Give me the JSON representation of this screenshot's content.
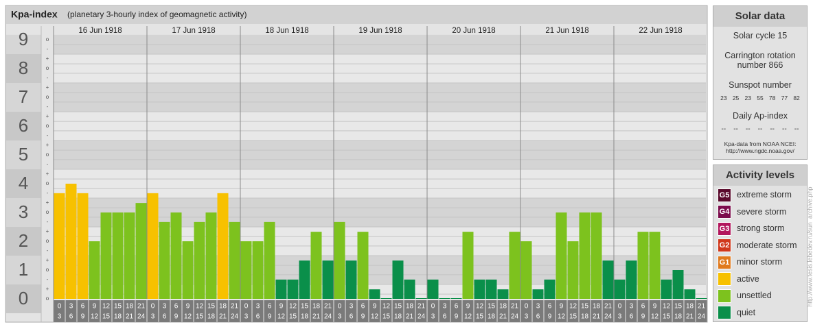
{
  "chart_data": {
    "type": "bar",
    "title": "Kpa-index",
    "subtitle": "(planetary 3-hourly index of geomagnetic activity)",
    "ylim": [
      0,
      9.17
    ],
    "yticks": [
      0,
      1,
      2,
      3,
      4,
      5,
      6,
      7,
      8,
      9
    ],
    "minor_ticks": [
      {
        "value": 0,
        "label": "o"
      },
      {
        "value": 0.33,
        "label": "+"
      },
      {
        "value": 0.67,
        "label": "-"
      },
      {
        "value": 1,
        "label": "o"
      },
      {
        "value": 1.33,
        "label": "+"
      },
      {
        "value": 1.67,
        "label": "-"
      },
      {
        "value": 2,
        "label": "o"
      },
      {
        "value": 2.33,
        "label": "+"
      },
      {
        "value": 2.67,
        "label": "-"
      },
      {
        "value": 3,
        "label": "o"
      },
      {
        "value": 3.33,
        "label": "+"
      },
      {
        "value": 3.67,
        "label": "-"
      },
      {
        "value": 4,
        "label": "o"
      },
      {
        "value": 4.33,
        "label": "+"
      },
      {
        "value": 4.67,
        "label": "-"
      },
      {
        "value": 5,
        "label": "o"
      },
      {
        "value": 5.33,
        "label": "+"
      },
      {
        "value": 5.67,
        "label": "-"
      },
      {
        "value": 6,
        "label": "o"
      },
      {
        "value": 6.33,
        "label": "+"
      },
      {
        "value": 6.67,
        "label": "-"
      },
      {
        "value": 7,
        "label": "o"
      },
      {
        "value": 7.33,
        "label": "+"
      },
      {
        "value": 7.67,
        "label": "-"
      },
      {
        "value": 8,
        "label": "o"
      },
      {
        "value": 8.33,
        "label": "+"
      },
      {
        "value": 8.67,
        "label": "-"
      },
      {
        "value": 9,
        "label": "o"
      }
    ],
    "hours_start": [
      0,
      3,
      6,
      9,
      12,
      15,
      18,
      21
    ],
    "hours_end": [
      3,
      6,
      9,
      12,
      15,
      18,
      21,
      24
    ],
    "days": [
      {
        "date": "16 Jun 1918",
        "values": [
          3.67,
          4,
          3.67,
          2,
          3,
          3,
          3,
          3.33
        ],
        "colors": [
          "#f7c100",
          "#f7c100",
          "#f7c100",
          "#7dc21e",
          "#7dc21e",
          "#7dc21e",
          "#7dc21e",
          "#7dc21e"
        ]
      },
      {
        "date": "17 Jun 1918",
        "values": [
          3.67,
          2.67,
          3,
          2,
          2.67,
          3,
          3.67,
          2.67
        ],
        "colors": [
          "#f7c100",
          "#7dc21e",
          "#7dc21e",
          "#7dc21e",
          "#7dc21e",
          "#7dc21e",
          "#f7c100",
          "#7dc21e"
        ]
      },
      {
        "date": "18 Jun 1918",
        "values": [
          2,
          2,
          2.67,
          0.67,
          0.67,
          1.33,
          2.33,
          1.33
        ],
        "colors": [
          "#7dc21e",
          "#7dc21e",
          "#7dc21e",
          "#0a8f4a",
          "#0a8f4a",
          "#0a8f4a",
          "#7dc21e",
          "#0a8f4a"
        ]
      },
      {
        "date": "19 Jun 1918",
        "values": [
          2.67,
          1.33,
          2.33,
          0.33,
          0,
          1.33,
          0.67,
          0
        ],
        "colors": [
          "#7dc21e",
          "#0a8f4a",
          "#7dc21e",
          "#0a8f4a",
          "#0a8f4a",
          "#0a8f4a",
          "#0a8f4a",
          "#0a8f4a"
        ]
      },
      {
        "date": "20 Jun 1918",
        "values": [
          0.67,
          0,
          0,
          2.33,
          0.67,
          0.67,
          0.33,
          2.33
        ],
        "colors": [
          "#0a8f4a",
          "#0a8f4a",
          "#0a8f4a",
          "#7dc21e",
          "#0a8f4a",
          "#0a8f4a",
          "#0a8f4a",
          "#7dc21e"
        ]
      },
      {
        "date": "21 Jun 1918",
        "values": [
          2,
          0.33,
          0.67,
          3,
          2,
          3,
          3,
          1.33
        ],
        "colors": [
          "#7dc21e",
          "#0a8f4a",
          "#0a8f4a",
          "#7dc21e",
          "#7dc21e",
          "#7dc21e",
          "#7dc21e",
          "#0a8f4a"
        ]
      },
      {
        "date": "22 Jun 1918",
        "values": [
          0.67,
          1.33,
          2.33,
          2.33,
          0.67,
          1,
          0.33,
          0
        ],
        "colors": [
          "#0a8f4a",
          "#0a8f4a",
          "#7dc21e",
          "#7dc21e",
          "#0a8f4a",
          "#0a8f4a",
          "#0a8f4a",
          "#0a8f4a"
        ]
      }
    ]
  },
  "solar_data": {
    "title": "Solar data",
    "cycle": "Solar cycle 15",
    "carrington": "Carrington rotation number 866",
    "sunspot_title": "Sunspot number",
    "sunspot": [
      23,
      25,
      23,
      55,
      78,
      77,
      82
    ],
    "ap_title": "Daily Ap-index",
    "ap": [
      "--",
      "--",
      "--",
      "--",
      "--",
      "--",
      "--"
    ],
    "source": "Kpa-data from NOAA NCEI:",
    "source_url": "http://www.ngdc.noaa.gov/"
  },
  "activity_levels": {
    "title": "Activity levels",
    "items": [
      {
        "badge": "G5",
        "label": "extreme storm",
        "color": "#5a0a2c"
      },
      {
        "badge": "G4",
        "label": "severe storm",
        "color": "#7c0c4c"
      },
      {
        "badge": "G3",
        "label": "strong storm",
        "color": "#b2165c"
      },
      {
        "badge": "G2",
        "label": "moderate storm",
        "color": "#d0381c"
      },
      {
        "badge": "G1",
        "label": "minor storm",
        "color": "#e07a1e"
      },
      {
        "label": "active",
        "color": "#f7c100"
      },
      {
        "label": "unsettled",
        "color": "#7dc21e"
      },
      {
        "label": "quiet",
        "color": "#0a8f4a"
      }
    ]
  },
  "watermark": "http://www.tesis.lebedev.ru/sun_archive.php"
}
